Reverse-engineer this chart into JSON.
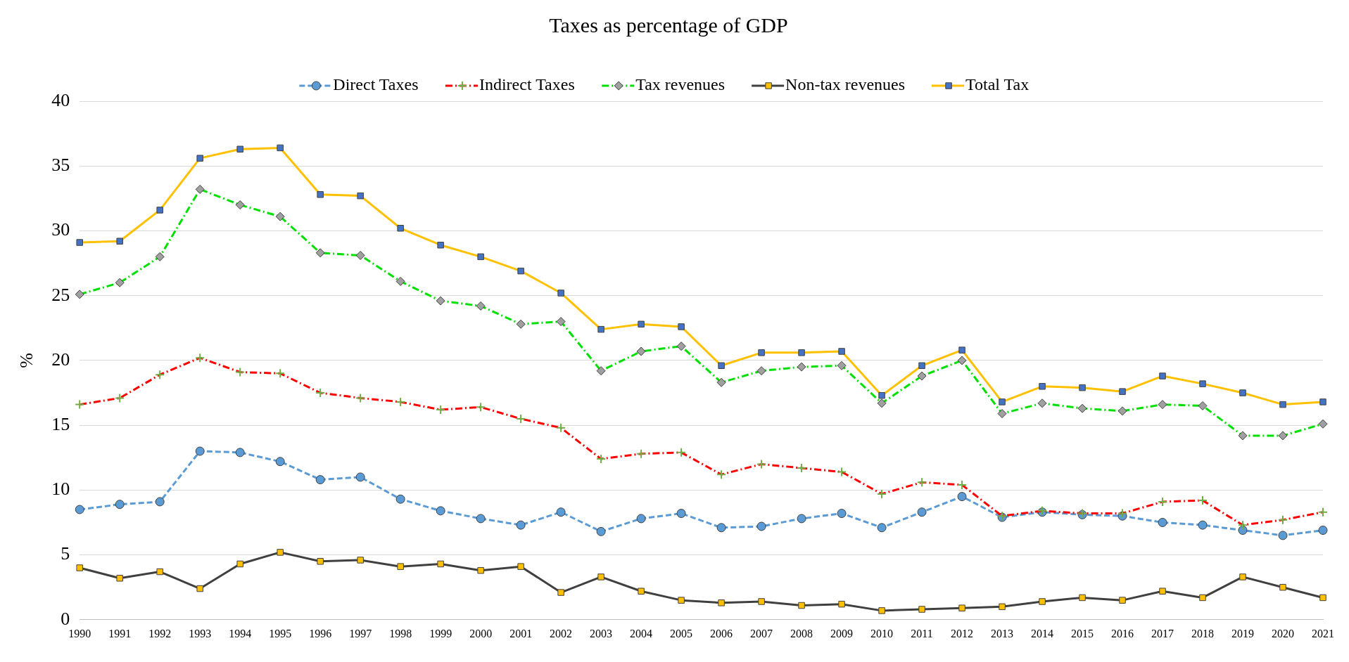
{
  "chart_data": {
    "type": "line",
    "title": "Taxes as percentage of GDP",
    "ylabel": "%",
    "categories": [
      "1990",
      "1991",
      "1992",
      "1993",
      "1994",
      "1995",
      "1996",
      "1997",
      "1998",
      "1999",
      "2000",
      "2001",
      "2002",
      "2003",
      "2004",
      "2005",
      "2006",
      "2007",
      "2008",
      "2009",
      "2010",
      "2011",
      "2012",
      "2013",
      "2014",
      "2015",
      "2016",
      "2017",
      "2018",
      "2019",
      "2020",
      "2021"
    ],
    "ylim": [
      0,
      40
    ],
    "yticks": [
      0,
      5,
      10,
      15,
      20,
      25,
      30,
      35,
      40
    ],
    "grid": "y",
    "legend": "top",
    "series": [
      {
        "name": "Direct Taxes",
        "color": "#5b9bd5",
        "marker": "circle",
        "line_style": "dashed",
        "values": [
          8.5,
          8.9,
          9.1,
          13.0,
          12.9,
          12.2,
          10.8,
          11.0,
          9.3,
          8.4,
          7.8,
          7.3,
          8.3,
          6.8,
          7.8,
          8.2,
          7.1,
          7.2,
          7.8,
          8.2,
          7.1,
          8.3,
          9.5,
          7.9,
          8.3,
          8.1,
          8.0,
          7.5,
          7.3,
          6.9,
          6.5,
          6.9
        ]
      },
      {
        "name": "Indirect Taxes",
        "color": "#ff0000",
        "colors": [
          "#70ad47",
          "#70ad47",
          "#70ad47",
          "#70ad47",
          "#70ad47",
          "#70ad47",
          "#70ad47",
          "#70ad47",
          "#70ad47",
          "#70ad47",
          "#70ad47",
          "#70ad47",
          "#70ad47",
          "#70ad47",
          "#70ad47",
          "#70ad47",
          "#70ad47",
          "#70ad47",
          "#70ad47",
          "#70ad47",
          "#70ad47",
          "#70ad47",
          "#70ad47",
          "#70ad47",
          "#70ad47",
          "#70ad47",
          "#70ad47",
          "#70ad47",
          "#70ad47",
          "#70ad47",
          "#70ad47",
          "#70ad47"
        ],
        "marker": "cross",
        "line_style": "dashdot",
        "values": [
          16.6,
          17.1,
          18.9,
          20.2,
          19.1,
          19.0,
          17.5,
          17.1,
          16.8,
          16.2,
          16.4,
          15.5,
          14.8,
          12.4,
          12.8,
          12.9,
          11.2,
          12.0,
          11.7,
          11.4,
          9.7,
          10.6,
          10.4,
          8.0,
          8.4,
          8.2,
          8.2,
          9.1,
          9.2,
          7.3,
          7.7,
          8.3
        ]
      },
      {
        "name": "Tax revenues",
        "color": "#00e000",
        "colors": [
          "#a0a0a0",
          "#a0a0a0",
          "#a0a0a0",
          "#a0a0a0",
          "#a0a0a0",
          "#a0a0a0",
          "#a0a0a0",
          "#a0a0a0",
          "#a0a0a0",
          "#a0a0a0",
          "#a0a0a0",
          "#a0a0a0",
          "#a0a0a0",
          "#a0a0a0",
          "#a0a0a0",
          "#a0a0a0",
          "#a0a0a0",
          "#a0a0a0",
          "#a0a0a0",
          "#a0a0a0",
          "#a0a0a0",
          "#a0a0a0",
          "#a0a0a0",
          "#a0a0a0",
          "#a0a0a0",
          "#a0a0a0",
          "#a0a0a0",
          "#a0a0a0",
          "#a0a0a0",
          "#a0a0a0",
          "#a0a0a0",
          "#a0a0a0"
        ],
        "marker": "diamond",
        "line_style": "dashdot",
        "values": [
          25.1,
          26.0,
          28.0,
          33.2,
          32.0,
          31.1,
          28.3,
          28.1,
          26.1,
          24.6,
          24.2,
          22.8,
          23.0,
          19.2,
          20.7,
          21.1,
          18.3,
          19.2,
          19.5,
          19.6,
          16.7,
          18.8,
          20.0,
          15.9,
          16.7,
          16.3,
          16.1,
          16.6,
          16.5,
          14.2,
          14.2,
          15.1
        ]
      },
      {
        "name": "Non-tax revenues",
        "color": "#404040",
        "colors": [
          "#ffc000",
          "#ffc000",
          "#ffc000",
          "#ffc000",
          "#ffc000",
          "#ffc000",
          "#ffc000",
          "#ffc000",
          "#ffc000",
          "#ffc000",
          "#ffc000",
          "#ffc000",
          "#ffc000",
          "#ffc000",
          "#ffc000",
          "#ffc000",
          "#ffc000",
          "#ffc000",
          "#ffc000",
          "#ffc000",
          "#ffc000",
          "#ffc000",
          "#ffc000",
          "#ffc000",
          "#ffc000",
          "#ffc000",
          "#ffc000",
          "#ffc000",
          "#ffc000",
          "#ffc000",
          "#ffc000",
          "#ffc000"
        ],
        "marker": "square",
        "line_style": "solid",
        "values": [
          4.0,
          3.2,
          3.7,
          2.4,
          4.3,
          5.2,
          4.5,
          4.6,
          4.1,
          4.3,
          3.8,
          4.1,
          2.1,
          3.3,
          2.2,
          1.5,
          1.3,
          1.4,
          1.1,
          1.2,
          0.7,
          0.8,
          0.9,
          1.0,
          1.4,
          1.7,
          1.5,
          2.2,
          1.7,
          3.3,
          2.5,
          1.7
        ]
      },
      {
        "name": "Total Tax",
        "color": "#ffc000",
        "colors": [
          "#4472c4",
          "#4472c4",
          "#4472c4",
          "#4472c4",
          "#4472c4",
          "#4472c4",
          "#4472c4",
          "#4472c4",
          "#4472c4",
          "#4472c4",
          "#4472c4",
          "#4472c4",
          "#4472c4",
          "#4472c4",
          "#4472c4",
          "#4472c4",
          "#4472c4",
          "#4472c4",
          "#4472c4",
          "#4472c4",
          "#4472c4",
          "#4472c4",
          "#4472c4",
          "#4472c4",
          "#4472c4",
          "#4472c4",
          "#4472c4",
          "#4472c4",
          "#4472c4",
          "#4472c4",
          "#4472c4",
          "#4472c4"
        ],
        "marker": "square",
        "line_style": "solid",
        "values": [
          29.1,
          29.2,
          31.6,
          35.6,
          36.3,
          36.4,
          32.8,
          32.7,
          30.2,
          28.9,
          28.0,
          26.9,
          25.2,
          22.4,
          22.8,
          22.6,
          19.6,
          20.6,
          20.6,
          20.7,
          17.3,
          19.6,
          20.8,
          16.8,
          18.0,
          17.9,
          17.6,
          18.8,
          18.2,
          17.5,
          16.6,
          16.8
        ]
      }
    ]
  }
}
